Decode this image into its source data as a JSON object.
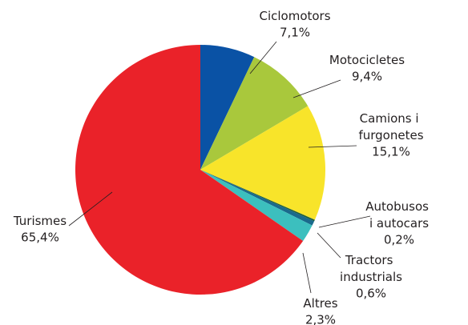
{
  "chart_data": {
    "type": "pie",
    "categories": [
      "Ciclomotors",
      "Motocicletes",
      "Camions i furgonetes",
      "Autobusos i autocars",
      "Tractors industrials",
      "Altres",
      "Turismes"
    ],
    "values": [
      7.1,
      9.4,
      15.1,
      0.2,
      0.6,
      2.3,
      65.4
    ],
    "value_labels": [
      "7,1%",
      "9,4%",
      "15,1%",
      "0,2%",
      "0,6%",
      "2,3%",
      "65,4%"
    ],
    "colors": [
      "#0a52a5",
      "#a9c83c",
      "#f8e42a",
      "#1d5e3c",
      "#1a6a8c",
      "#3cbfbe",
      "#ea2229"
    ]
  }
}
